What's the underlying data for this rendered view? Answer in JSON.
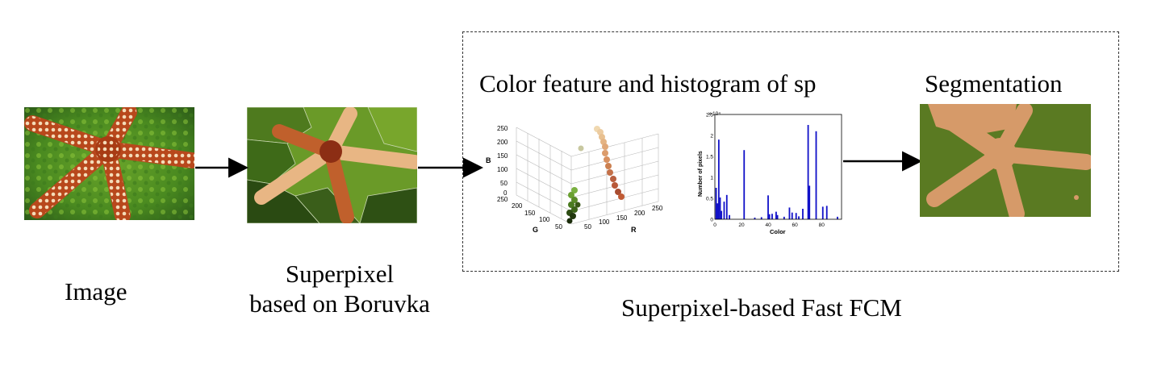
{
  "labels": {
    "image": "Image",
    "superpixel_line1": "Superpixel",
    "superpixel_line2": "based on Boruvka",
    "color_feature": "Color feature and histogram of sp",
    "segmentation": "Segmentation",
    "fast_fcm": "Superpixel-based Fast FCM"
  },
  "scatter3d": {
    "z_label": "B",
    "y_label": "G",
    "x_label": "R",
    "z_ticks": [
      "250",
      "200",
      "150",
      "100",
      "50",
      "0"
    ],
    "y_ticks": [
      "250",
      "200",
      "150",
      "100",
      "50"
    ],
    "x_ticks": [
      "50",
      "100",
      "150",
      "200",
      "250"
    ]
  },
  "histogram": {
    "ylabel": "Number of pixels",
    "xlabel": "Color",
    "y_exponent": "x 10⁴",
    "y_ticks": [
      "2.5",
      "2",
      "1.5",
      "1",
      "0.5",
      "0"
    ],
    "x_ticks": [
      "0",
      "20",
      "40",
      "60",
      "80"
    ],
    "ylim": [
      0,
      25000
    ],
    "xlim": [
      0,
      95
    ],
    "bars": [
      {
        "x": 1,
        "y": 7500
      },
      {
        "x": 2,
        "y": 3800
      },
      {
        "x": 3,
        "y": 19000
      },
      {
        "x": 4,
        "y": 5200
      },
      {
        "x": 5,
        "y": 2000
      },
      {
        "x": 7,
        "y": 4200
      },
      {
        "x": 9,
        "y": 5800
      },
      {
        "x": 11,
        "y": 1000
      },
      {
        "x": 22,
        "y": 16500
      },
      {
        "x": 30,
        "y": 400
      },
      {
        "x": 35,
        "y": 500
      },
      {
        "x": 40,
        "y": 5700
      },
      {
        "x": 41,
        "y": 1200
      },
      {
        "x": 43,
        "y": 1300
      },
      {
        "x": 46,
        "y": 1800
      },
      {
        "x": 47,
        "y": 1000
      },
      {
        "x": 52,
        "y": 600
      },
      {
        "x": 56,
        "y": 2800
      },
      {
        "x": 58,
        "y": 1600
      },
      {
        "x": 61,
        "y": 1500
      },
      {
        "x": 63,
        "y": 700
      },
      {
        "x": 66,
        "y": 2500
      },
      {
        "x": 70,
        "y": 22500
      },
      {
        "x": 71,
        "y": 8000
      },
      {
        "x": 76,
        "y": 21000
      },
      {
        "x": 81,
        "y": 3000
      },
      {
        "x": 84,
        "y": 3200
      },
      {
        "x": 92,
        "y": 600
      }
    ]
  },
  "colors": {
    "starfish": "#d28a55",
    "segment_orange": "#d69a69",
    "segment_green": "#5a7a22",
    "bar_blue": "#1010c8"
  }
}
